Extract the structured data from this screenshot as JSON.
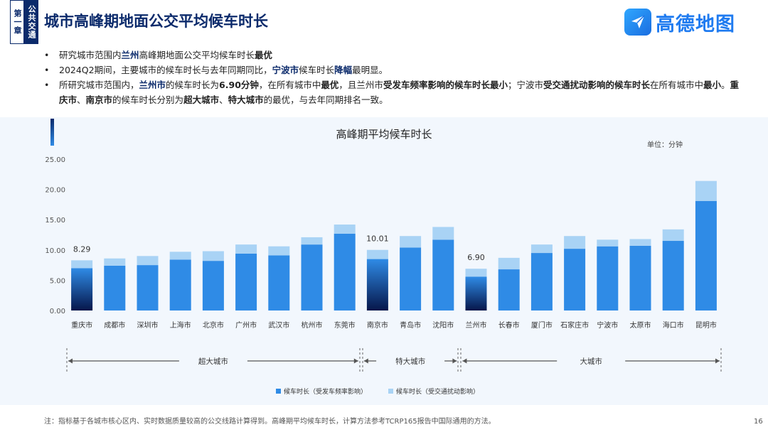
{
  "header": {
    "chapter": "第一章",
    "section": "公共交通",
    "title": "城市高峰期地面公交平均候车时长",
    "logo_text": "高德地图"
  },
  "bullets": {
    "b1": {
      "p1": "研究城市范围内",
      "p2": "兰州",
      "p3": "高峰期地面公交平均候车时长",
      "p4": "最优"
    },
    "b2": {
      "p1": "2024Q2期间，主要城市的候车时长与去年同期同比，",
      "p2": "宁波市",
      "p3": "候车时长",
      "p4": "降幅",
      "p5": "最明显。"
    },
    "b3": {
      "p1": "所研究城市范围内，",
      "p2": "兰州市",
      "p3": "的候车时长为",
      "p4": "6.90分钟",
      "p5": "，在所有城市中",
      "p6": "最优",
      "p7": "，且兰州市",
      "p8": "受发车频率影响的候车时长最小",
      "p9": "；宁波市",
      "p10": "受交通扰动影响的候车时长",
      "p11": "在所有城市中",
      "p12": "最小",
      "p13": "。",
      "p14": "重庆市",
      "p15": "、",
      "p16": "南京市",
      "p17": "的候车时长分别为",
      "p18": "超大城市",
      "p19": "、",
      "p20": "特大城市",
      "p21": "的最优，与去年同期排名一致。"
    }
  },
  "chart_data": {
    "type": "bar",
    "stacked": true,
    "title": "高峰期平均候车时长",
    "unit": "单位：分钟",
    "categories": [
      "重庆市",
      "成都市",
      "深圳市",
      "上海市",
      "北京市",
      "广州市",
      "武汉市",
      "杭州市",
      "东莞市",
      "南京市",
      "青岛市",
      "沈阳市",
      "兰州市",
      "长春市",
      "厦门市",
      "石家庄市",
      "宁波市",
      "太原市",
      "海口市",
      "昆明市"
    ],
    "series": [
      {
        "name": "候车时长（受发车频率影响）",
        "color": "#2f8be6",
        "values": [
          7.0,
          7.4,
          7.5,
          8.4,
          8.2,
          9.4,
          9.1,
          10.9,
          12.7,
          8.5,
          10.4,
          11.7,
          5.6,
          6.8,
          9.5,
          10.2,
          10.6,
          10.7,
          11.5,
          18.1
        ]
      },
      {
        "name": "候车时长（受交通扰动影响）",
        "color": "#a9d3f5",
        "values": [
          1.29,
          1.2,
          1.5,
          1.3,
          1.6,
          1.5,
          1.5,
          1.2,
          1.5,
          1.51,
          1.9,
          2.1,
          1.3,
          1.9,
          1.4,
          2.1,
          1.1,
          1.1,
          1.9,
          3.3
        ]
      }
    ],
    "highlight": [
      "重庆市",
      "南京市",
      "兰州市"
    ],
    "data_labels": {
      "重庆市": "8.29",
      "南京市": "10.01",
      "兰州市": "6.90"
    },
    "yticks": [
      "0.00",
      "5.00",
      "10.00",
      "15.00",
      "20.00",
      "25.00"
    ],
    "ylim": [
      0,
      25
    ],
    "grid": false,
    "legend_position": "bottom",
    "groups": [
      {
        "label": "超大城市",
        "from": "重庆市",
        "to": "东莞市"
      },
      {
        "label": "特大城市",
        "from": "南京市",
        "to": "沈阳市"
      },
      {
        "label": "大城市",
        "from": "兰州市",
        "to": "昆明市"
      }
    ]
  },
  "footer": {
    "note": "注：指标基于各城市核心区内、实时数据质量较高的公交线路计算得到。高峰期平均候车时长，计算方法参考TCRP165报告中国际通用的方法。",
    "page": "16"
  }
}
